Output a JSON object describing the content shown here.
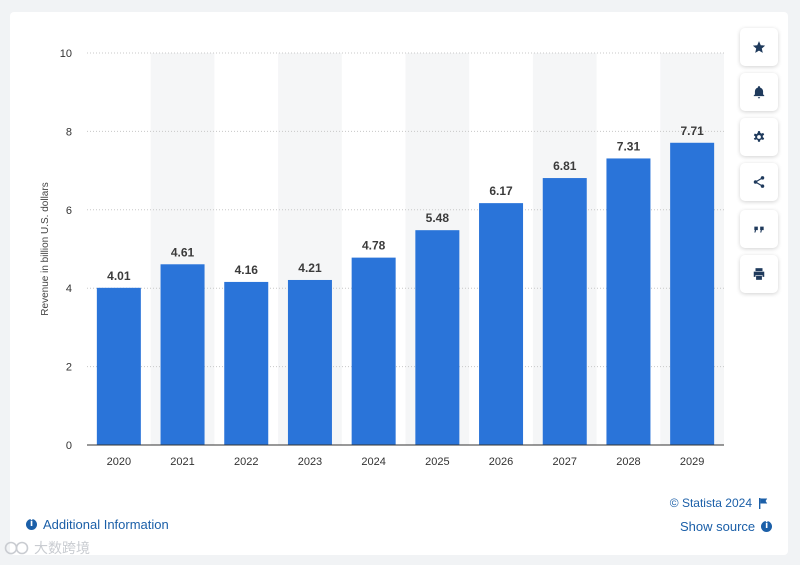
{
  "chart_data": {
    "type": "bar",
    "categories": [
      "2020",
      "2021",
      "2022",
      "2023",
      "2024",
      "2025",
      "2026",
      "2027",
      "2028",
      "2029"
    ],
    "values": [
      4.01,
      4.61,
      4.16,
      4.21,
      4.78,
      5.48,
      6.17,
      6.81,
      7.31,
      7.71
    ],
    "value_labels": [
      "4.01",
      "4.61",
      "4.16",
      "4.21",
      "4.78",
      "5.48",
      "6.17",
      "6.81",
      "7.31",
      "7.71"
    ],
    "title": "",
    "xlabel": "",
    "ylabel": "Revenue in billion U.S. dollars",
    "ylim": [
      0,
      10
    ],
    "yticks": [
      "0",
      "2",
      "4",
      "6",
      "8",
      "10"
    ],
    "grid": true,
    "bar_color": "#2a74d9",
    "band_color": "#f5f6f7"
  },
  "toolbar": {
    "buttons": [
      {
        "icon": "star-icon",
        "name": "favorite-button"
      },
      {
        "icon": "bell-icon",
        "name": "notification-button"
      },
      {
        "icon": "gear-icon",
        "name": "settings-button"
      },
      {
        "icon": "share-icon",
        "name": "share-button"
      },
      {
        "icon": "quote-icon",
        "name": "cite-button"
      },
      {
        "icon": "print-icon",
        "name": "print-button"
      }
    ]
  },
  "footer": {
    "copyright": "© Statista 2024",
    "additional_info": "Additional Information",
    "show_source": "Show source",
    "watermark": "大数跨境"
  }
}
